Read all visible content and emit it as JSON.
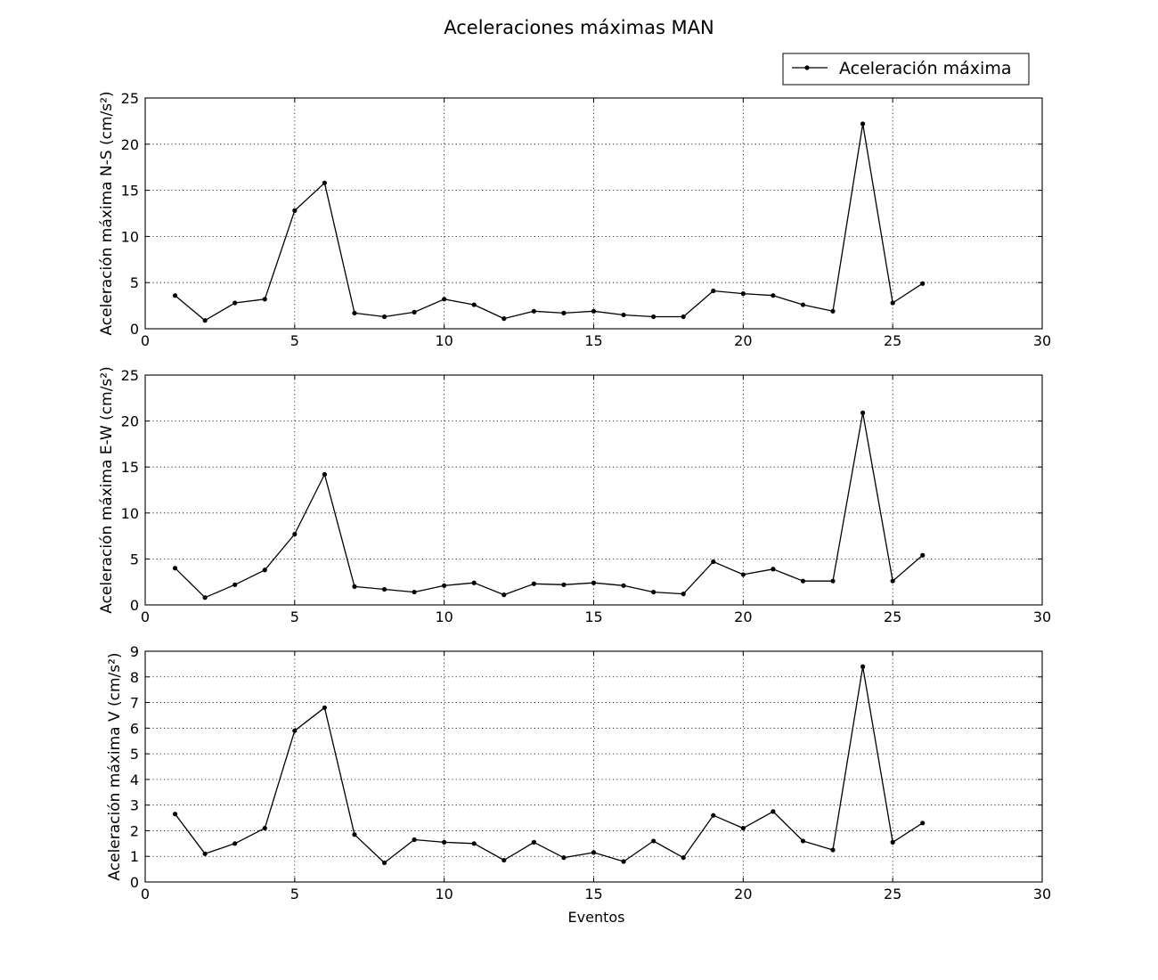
{
  "chart_data": [
    {
      "type": "line",
      "title": "Aceleraciones máximas MAN",
      "ylabel": "Aceleración máxima N-S (cm/s²)",
      "xlabel": "",
      "xlim": [
        0,
        30
      ],
      "ylim": [
        0,
        25
      ],
      "xticks": [
        0,
        5,
        10,
        15,
        20,
        25,
        30
      ],
      "yticks": [
        0,
        5,
        10,
        15,
        20,
        25
      ],
      "grid": true,
      "legend": "top-right",
      "series": [
        {
          "name": "Aceleración máxima",
          "color": "#000000",
          "x": [
            1,
            2,
            3,
            4,
            5,
            6,
            7,
            8,
            9,
            10,
            11,
            12,
            13,
            14,
            15,
            16,
            17,
            18,
            19,
            20,
            21,
            22,
            23,
            24,
            25,
            26
          ],
          "values": [
            3.6,
            0.9,
            2.8,
            3.2,
            12.8,
            15.8,
            1.7,
            1.3,
            1.8,
            3.2,
            2.6,
            1.1,
            1.9,
            1.7,
            1.9,
            1.5,
            1.3,
            1.3,
            4.1,
            3.8,
            3.6,
            2.6,
            1.9,
            22.2,
            2.8,
            4.9
          ]
        }
      ]
    },
    {
      "type": "line",
      "ylabel": "Aceleración máxima E-W (cm/s²)",
      "xlabel": "",
      "xlim": [
        0,
        30
      ],
      "ylim": [
        0,
        25
      ],
      "xticks": [
        0,
        5,
        10,
        15,
        20,
        25,
        30
      ],
      "yticks": [
        0,
        5,
        10,
        15,
        20,
        25
      ],
      "grid": true,
      "series": [
        {
          "color": "#000000",
          "x": [
            1,
            2,
            3,
            4,
            5,
            6,
            7,
            8,
            9,
            10,
            11,
            12,
            13,
            14,
            15,
            16,
            17,
            18,
            19,
            20,
            21,
            22,
            23,
            24,
            25,
            26
          ],
          "values": [
            4.0,
            0.8,
            2.2,
            3.8,
            7.7,
            14.2,
            2.0,
            1.7,
            1.4,
            2.1,
            2.4,
            1.1,
            2.3,
            2.2,
            2.4,
            2.1,
            1.4,
            1.2,
            4.7,
            3.3,
            3.9,
            2.6,
            2.6,
            20.9,
            2.6,
            5.4
          ]
        }
      ]
    },
    {
      "type": "line",
      "ylabel": "Aceleración máxima V (cm/s²)",
      "xlabel": "Eventos",
      "xlim": [
        0,
        30
      ],
      "ylim": [
        0,
        9
      ],
      "xticks": [
        0,
        5,
        10,
        15,
        20,
        25,
        30
      ],
      "yticks": [
        0,
        1,
        2,
        3,
        4,
        5,
        6,
        7,
        8,
        9
      ],
      "grid": true,
      "series": [
        {
          "color": "#000000",
          "x": [
            1,
            2,
            3,
            4,
            5,
            6,
            7,
            8,
            9,
            10,
            11,
            12,
            13,
            14,
            15,
            16,
            17,
            18,
            19,
            20,
            21,
            22,
            23,
            24,
            25,
            26
          ],
          "values": [
            2.65,
            1.1,
            1.5,
            2.1,
            5.9,
            6.8,
            1.85,
            0.75,
            1.65,
            1.55,
            1.5,
            0.85,
            1.55,
            0.95,
            1.15,
            0.8,
            1.6,
            0.95,
            2.6,
            2.1,
            2.75,
            1.6,
            1.25,
            8.4,
            1.55,
            2.3
          ]
        }
      ]
    }
  ]
}
